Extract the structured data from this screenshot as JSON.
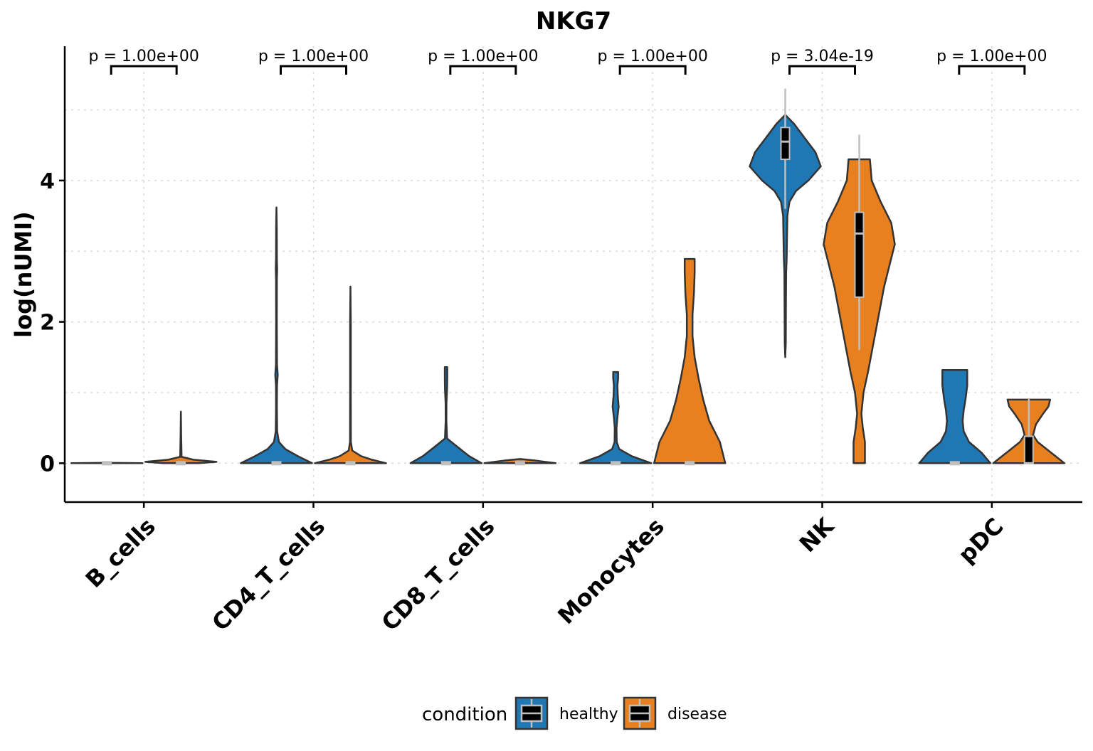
{
  "chart_data": {
    "type": "violin",
    "title": "NKG7",
    "xlabel": "",
    "ylabel": "log(nUMI)",
    "ylim": [
      -0.55,
      5.9
    ],
    "yticks": [
      "0",
      "2",
      "4"
    ],
    "grid": true,
    "categories": [
      "B_cells",
      "CD4_T_cells",
      "CD8_T_cells",
      "Monocytes",
      "NK",
      "pDC"
    ],
    "legend": {
      "title": "condition",
      "placement": "bottom",
      "entries": [
        "healthy",
        "disease"
      ]
    },
    "colors": {
      "healthy": "#1f77b4",
      "disease": "#e8801f",
      "outline": "#333333",
      "box": "#000000",
      "box_border": "#bfbfbf"
    },
    "pvalues": [
      "p = 1.00e+00",
      "p = 1.00e+00",
      "p = 1.00e+00",
      "p = 1.00e+00",
      "p = 3.04e-19",
      "p = 1.00e+00"
    ],
    "series": [
      {
        "name": "healthy",
        "violins": [
          {
            "category": "B_cells",
            "median": 0,
            "q1": 0,
            "q3": 0,
            "whisker_low": 0,
            "whisker_high": 0,
            "density": [
              [
                0,
                1.0
              ],
              [
                0.005,
                0.01
              ],
              [
                0.01,
                0
              ]
            ]
          },
          {
            "category": "CD4_T_cells",
            "median": 0,
            "q1": 0,
            "q3": 0,
            "whisker_low": 0,
            "whisker_high": 0,
            "density": [
              [
                0,
                1.0
              ],
              [
                0.1,
                0.6
              ],
              [
                0.2,
                0.25
              ],
              [
                0.3,
                0.07
              ],
              [
                0.45,
                0.02
              ],
              [
                0.8,
                0.012
              ],
              [
                1.1,
                0.015
              ],
              [
                1.25,
                0.035
              ],
              [
                1.4,
                0.015
              ],
              [
                2.0,
                0.01
              ],
              [
                2.6,
                0.012
              ],
              [
                2.75,
                0.02
              ],
              [
                2.9,
                0.012
              ],
              [
                3.3,
                0.01
              ],
              [
                3.62,
                0
              ]
            ]
          },
          {
            "category": "CD8_T_cells",
            "median": 0,
            "q1": 0,
            "q3": 0,
            "whisker_low": 0,
            "whisker_high": 0,
            "density": [
              [
                0,
                1.0
              ],
              [
                0.1,
                0.65
              ],
              [
                0.2,
                0.4
              ],
              [
                0.28,
                0.2
              ],
              [
                0.35,
                0.03
              ],
              [
                0.6,
                0.01
              ],
              [
                0.85,
                0.012
              ],
              [
                1.05,
                0.03
              ],
              [
                1.2,
                0.035
              ],
              [
                1.36,
                0.035
              ]
            ]
          },
          {
            "category": "Monocytes",
            "median": 0,
            "q1": 0,
            "q3": 0,
            "whisker_low": 0,
            "whisker_high": 0,
            "density": [
              [
                0,
                1.0
              ],
              [
                0.1,
                0.45
              ],
              [
                0.2,
                0.1
              ],
              [
                0.3,
                0.03
              ],
              [
                0.5,
                0.025
              ],
              [
                0.65,
                0.05
              ],
              [
                0.8,
                0.085
              ],
              [
                0.95,
                0.06
              ],
              [
                1.1,
                0.05
              ],
              [
                1.2,
                0.07
              ],
              [
                1.29,
                0.07
              ]
            ]
          },
          {
            "category": "NK",
            "median": 4.55,
            "q1": 4.3,
            "q3": 4.75,
            "whisker_low": 3.6,
            "whisker_high": 5.3,
            "density": [
              [
                1.5,
                0
              ],
              [
                1.7,
                0.015
              ],
              [
                2.3,
                0.02
              ],
              [
                2.7,
                0.025
              ],
              [
                2.9,
                0.04
              ],
              [
                3.2,
                0.05
              ],
              [
                3.5,
                0.06
              ],
              [
                3.7,
                0.12
              ],
              [
                3.85,
                0.3
              ],
              [
                4.0,
                0.65
              ],
              [
                4.2,
                1.0
              ],
              [
                4.4,
                0.85
              ],
              [
                4.6,
                0.55
              ],
              [
                4.8,
                0.25
              ],
              [
                4.93,
                0
              ]
            ]
          },
          {
            "category": "pDC",
            "median": 0,
            "q1": 0,
            "q3": 0,
            "whisker_low": 0,
            "whisker_high": 0,
            "density": [
              [
                0,
                1.0
              ],
              [
                0.15,
                0.75
              ],
              [
                0.3,
                0.4
              ],
              [
                0.45,
                0.25
              ],
              [
                0.6,
                0.22
              ],
              [
                0.75,
                0.25
              ],
              [
                0.9,
                0.3
              ],
              [
                1.1,
                0.35
              ],
              [
                1.25,
                0.35
              ],
              [
                1.32,
                0.35
              ]
            ]
          }
        ]
      },
      {
        "name": "disease",
        "violins": [
          {
            "category": "B_cells",
            "median": 0,
            "q1": 0,
            "q3": 0,
            "whisker_low": 0,
            "whisker_high": 0,
            "density": [
              [
                0,
                0.5
              ],
              [
                0.02,
                1.0
              ],
              [
                0.05,
                0.35
              ],
              [
                0.09,
                0.02
              ],
              [
                0.4,
                0.008
              ],
              [
                0.73,
                0
              ]
            ]
          },
          {
            "category": "CD4_T_cells",
            "median": 0,
            "q1": 0,
            "q3": 0,
            "whisker_low": 0,
            "whisker_high": 0,
            "density": [
              [
                0,
                1.0
              ],
              [
                0.05,
                0.6
              ],
              [
                0.1,
                0.3
              ],
              [
                0.18,
                0.05
              ],
              [
                0.3,
                0.012
              ],
              [
                1.0,
                0.01
              ],
              [
                2.0,
                0.01
              ],
              [
                2.5,
                0
              ]
            ]
          },
          {
            "category": "CD8_T_cells",
            "median": 0,
            "q1": 0,
            "q3": 0,
            "whisker_low": 0,
            "whisker_high": 0,
            "density": [
              [
                0,
                1.0
              ],
              [
                0.04,
                0.4
              ],
              [
                0.06,
                0
              ]
            ]
          },
          {
            "category": "Monocytes",
            "median": 0,
            "q1": 0,
            "q3": 0,
            "whisker_low": 0,
            "whisker_high": 0,
            "density": [
              [
                0,
                1.0
              ],
              [
                0.3,
                0.85
              ],
              [
                0.6,
                0.55
              ],
              [
                0.9,
                0.38
              ],
              [
                1.2,
                0.25
              ],
              [
                1.5,
                0.14
              ],
              [
                1.8,
                0.08
              ],
              [
                2.1,
                0.08
              ],
              [
                2.4,
                0.12
              ],
              [
                2.7,
                0.14
              ],
              [
                2.89,
                0.14
              ]
            ]
          },
          {
            "category": "NK",
            "median": 3.25,
            "q1": 2.35,
            "q3": 3.55,
            "whisker_low": 1.6,
            "whisker_high": 4.65,
            "density": [
              [
                0,
                0.16
              ],
              [
                0.3,
                0.16
              ],
              [
                0.5,
                0.1
              ],
              [
                0.7,
                0.06
              ],
              [
                1.0,
                0.12
              ],
              [
                1.3,
                0.25
              ],
              [
                1.7,
                0.4
              ],
              [
                2.1,
                0.55
              ],
              [
                2.5,
                0.7
              ],
              [
                2.8,
                0.85
              ],
              [
                3.1,
                1.0
              ],
              [
                3.4,
                0.9
              ],
              [
                3.7,
                0.6
              ],
              [
                4.0,
                0.35
              ],
              [
                4.3,
                0.3
              ]
            ]
          },
          {
            "category": "pDC",
            "median": 0,
            "q1": 0,
            "q3": 0.38,
            "whisker_low": 0,
            "whisker_high": 0.92,
            "density": [
              [
                0,
                1.0
              ],
              [
                0.1,
                0.75
              ],
              [
                0.2,
                0.5
              ],
              [
                0.3,
                0.25
              ],
              [
                0.4,
                0.12
              ],
              [
                0.55,
                0.2
              ],
              [
                0.7,
                0.4
              ],
              [
                0.8,
                0.55
              ],
              [
                0.9,
                0.6
              ]
            ]
          }
        ]
      }
    ]
  }
}
